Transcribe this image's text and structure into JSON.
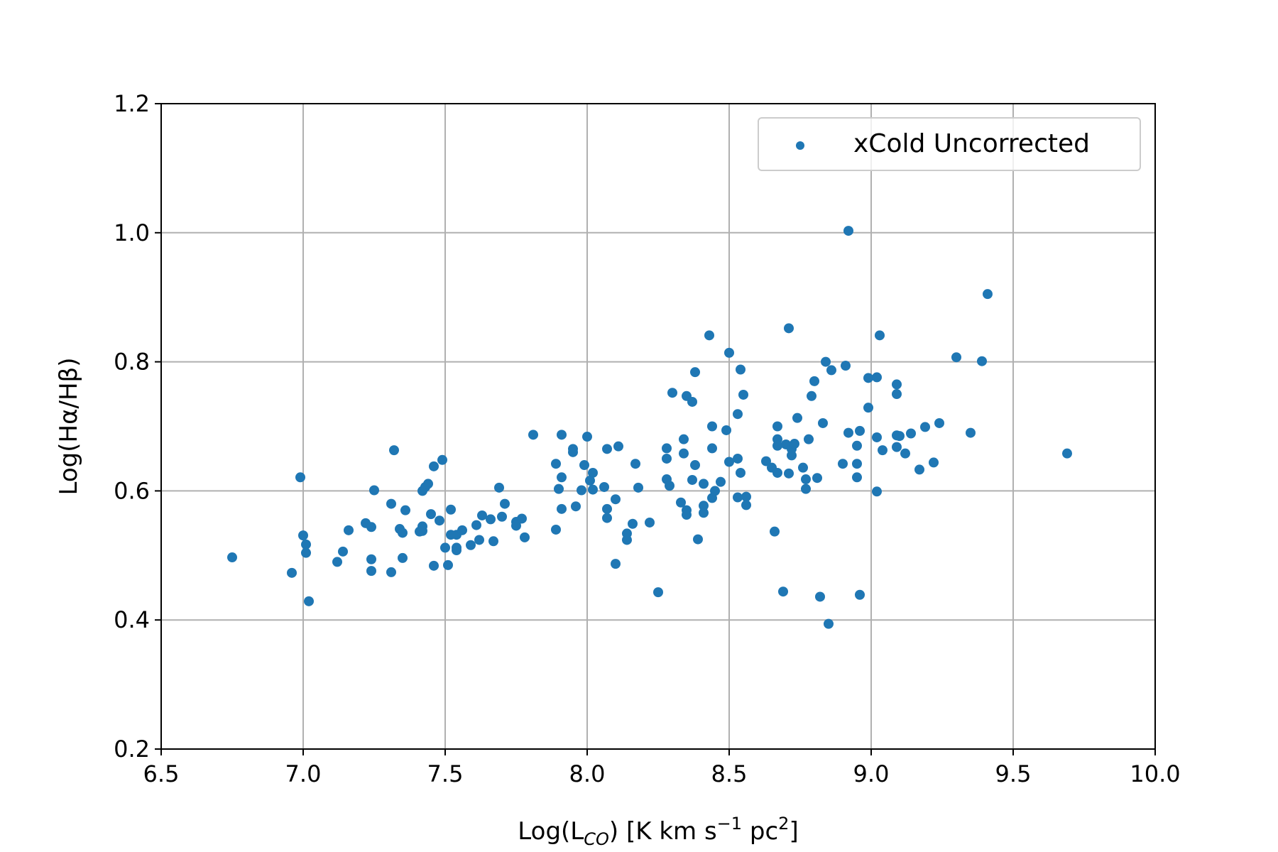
{
  "chart_data": {
    "type": "scatter",
    "xlabel": {
      "main": "Log(L",
      "sub": "CO",
      "unit_prefix": ") [K km s",
      "sup1": "−1",
      "unit_mid": " pc",
      "sup2": "2",
      "unit_end": "]"
    },
    "ylabel": "Log(Hα/Hβ)",
    "xlim": [
      6.5,
      10.0
    ],
    "ylim": [
      0.2,
      1.2
    ],
    "xticks": [
      "6.5",
      "7.0",
      "7.5",
      "8.0",
      "8.5",
      "9.0",
      "9.5",
      "10.0"
    ],
    "yticks": [
      "0.2",
      "0.4",
      "0.6",
      "0.8",
      "1.0",
      "1.2"
    ],
    "grid": true,
    "legend_position": "top-right",
    "marker_color": "#1f77b4",
    "series": [
      {
        "name": "xCold Uncorrected",
        "points": [
          [
            6.75,
            0.497
          ],
          [
            6.96,
            0.473
          ],
          [
            6.99,
            0.621
          ],
          [
            7.0,
            0.531
          ],
          [
            7.01,
            0.517
          ],
          [
            7.01,
            0.504
          ],
          [
            7.02,
            0.429
          ],
          [
            7.12,
            0.49
          ],
          [
            7.14,
            0.506
          ],
          [
            7.16,
            0.539
          ],
          [
            7.22,
            0.55
          ],
          [
            7.24,
            0.544
          ],
          [
            7.24,
            0.494
          ],
          [
            7.24,
            0.476
          ],
          [
            7.25,
            0.601
          ],
          [
            7.31,
            0.58
          ],
          [
            7.31,
            0.474
          ],
          [
            7.32,
            0.663
          ],
          [
            7.34,
            0.541
          ],
          [
            7.35,
            0.535
          ],
          [
            7.35,
            0.496
          ],
          [
            7.36,
            0.57
          ],
          [
            7.41,
            0.537
          ],
          [
            7.42,
            0.545
          ],
          [
            7.42,
            0.538
          ],
          [
            7.42,
            0.6
          ],
          [
            7.43,
            0.606
          ],
          [
            7.44,
            0.611
          ],
          [
            7.45,
            0.564
          ],
          [
            7.46,
            0.484
          ],
          [
            7.46,
            0.638
          ],
          [
            7.48,
            0.554
          ],
          [
            7.49,
            0.648
          ],
          [
            7.5,
            0.512
          ],
          [
            7.51,
            0.485
          ],
          [
            7.52,
            0.571
          ],
          [
            7.52,
            0.532
          ],
          [
            7.54,
            0.532
          ],
          [
            7.54,
            0.508
          ],
          [
            7.54,
            0.512
          ],
          [
            7.56,
            0.539
          ],
          [
            7.59,
            0.516
          ],
          [
            7.61,
            0.547
          ],
          [
            7.62,
            0.524
          ],
          [
            7.63,
            0.562
          ],
          [
            7.66,
            0.556
          ],
          [
            7.67,
            0.522
          ],
          [
            7.69,
            0.605
          ],
          [
            7.7,
            0.56
          ],
          [
            7.71,
            0.58
          ],
          [
            7.75,
            0.552
          ],
          [
            7.75,
            0.546
          ],
          [
            7.77,
            0.557
          ],
          [
            7.78,
            0.528
          ],
          [
            7.81,
            0.687
          ],
          [
            7.89,
            0.642
          ],
          [
            7.89,
            0.54
          ],
          [
            7.9,
            0.603
          ],
          [
            7.91,
            0.687
          ],
          [
            7.91,
            0.621
          ],
          [
            7.91,
            0.572
          ],
          [
            7.95,
            0.665
          ],
          [
            7.95,
            0.66
          ],
          [
            7.96,
            0.576
          ],
          [
            7.98,
            0.601
          ],
          [
            7.99,
            0.64
          ],
          [
            8.0,
            0.684
          ],
          [
            8.01,
            0.616
          ],
          [
            8.02,
            0.628
          ],
          [
            8.02,
            0.602
          ],
          [
            8.06,
            0.606
          ],
          [
            8.07,
            0.572
          ],
          [
            8.07,
            0.558
          ],
          [
            8.07,
            0.665
          ],
          [
            8.1,
            0.587
          ],
          [
            8.1,
            0.487
          ],
          [
            8.11,
            0.669
          ],
          [
            8.14,
            0.534
          ],
          [
            8.14,
            0.524
          ],
          [
            8.16,
            0.549
          ],
          [
            8.17,
            0.642
          ],
          [
            8.18,
            0.605
          ],
          [
            8.22,
            0.551
          ],
          [
            8.25,
            0.443
          ],
          [
            8.28,
            0.618
          ],
          [
            8.28,
            0.666
          ],
          [
            8.28,
            0.65
          ],
          [
            8.29,
            0.608
          ],
          [
            8.3,
            0.752
          ],
          [
            8.33,
            0.582
          ],
          [
            8.34,
            0.68
          ],
          [
            8.34,
            0.658
          ],
          [
            8.35,
            0.747
          ],
          [
            8.35,
            0.563
          ],
          [
            8.35,
            0.57
          ],
          [
            8.37,
            0.738
          ],
          [
            8.37,
            0.617
          ],
          [
            8.38,
            0.64
          ],
          [
            8.38,
            0.784
          ],
          [
            8.39,
            0.525
          ],
          [
            8.41,
            0.611
          ],
          [
            8.41,
            0.566
          ],
          [
            8.41,
            0.577
          ],
          [
            8.43,
            0.841
          ],
          [
            8.44,
            0.7
          ],
          [
            8.44,
            0.666
          ],
          [
            8.44,
            0.589
          ],
          [
            8.45,
            0.6
          ],
          [
            8.47,
            0.614
          ],
          [
            8.49,
            0.694
          ],
          [
            8.5,
            0.645
          ],
          [
            8.5,
            0.814
          ],
          [
            8.53,
            0.719
          ],
          [
            8.53,
            0.65
          ],
          [
            8.53,
            0.59
          ],
          [
            8.54,
            0.788
          ],
          [
            8.54,
            0.628
          ],
          [
            8.55,
            0.749
          ],
          [
            8.56,
            0.591
          ],
          [
            8.56,
            0.578
          ],
          [
            8.63,
            0.646
          ],
          [
            8.65,
            0.636
          ],
          [
            8.66,
            0.537
          ],
          [
            8.67,
            0.7
          ],
          [
            8.67,
            0.68
          ],
          [
            8.67,
            0.67
          ],
          [
            8.67,
            0.628
          ],
          [
            8.69,
            0.444
          ],
          [
            8.7,
            0.672
          ],
          [
            8.71,
            0.852
          ],
          [
            8.71,
            0.627
          ],
          [
            8.72,
            0.655
          ],
          [
            8.72,
            0.665
          ],
          [
            8.73,
            0.673
          ],
          [
            8.74,
            0.713
          ],
          [
            8.76,
            0.636
          ],
          [
            8.77,
            0.618
          ],
          [
            8.77,
            0.603
          ],
          [
            8.78,
            0.68
          ],
          [
            8.79,
            0.747
          ],
          [
            8.8,
            0.77
          ],
          [
            8.81,
            0.62
          ],
          [
            8.82,
            0.436
          ],
          [
            8.83,
            0.705
          ],
          [
            8.84,
            0.8
          ],
          [
            8.85,
            0.394
          ],
          [
            8.86,
            0.787
          ],
          [
            8.9,
            0.642
          ],
          [
            8.91,
            0.794
          ],
          [
            8.92,
            1.003
          ],
          [
            8.92,
            0.69
          ],
          [
            8.95,
            0.67
          ],
          [
            8.95,
            0.642
          ],
          [
            8.95,
            0.621
          ],
          [
            8.96,
            0.693
          ],
          [
            8.96,
            0.439
          ],
          [
            8.99,
            0.775
          ],
          [
            8.99,
            0.729
          ],
          [
            9.02,
            0.776
          ],
          [
            9.02,
            0.683
          ],
          [
            9.02,
            0.599
          ],
          [
            9.03,
            0.841
          ],
          [
            9.04,
            0.663
          ],
          [
            9.09,
            0.686
          ],
          [
            9.09,
            0.765
          ],
          [
            9.09,
            0.75
          ],
          [
            9.1,
            0.685
          ],
          [
            9.09,
            0.668
          ],
          [
            9.12,
            0.658
          ],
          [
            9.14,
            0.689
          ],
          [
            9.17,
            0.633
          ],
          [
            9.19,
            0.699
          ],
          [
            9.22,
            0.644
          ],
          [
            9.24,
            0.705
          ],
          [
            9.3,
            0.807
          ],
          [
            9.35,
            0.69
          ],
          [
            9.39,
            0.801
          ],
          [
            9.41,
            0.905
          ],
          [
            9.69,
            0.658
          ]
        ]
      }
    ]
  }
}
